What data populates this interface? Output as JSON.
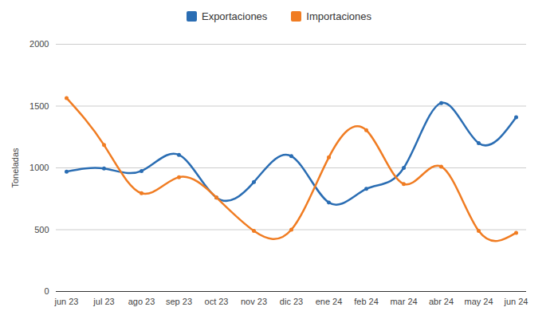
{
  "chart_data": {
    "type": "line",
    "categories": [
      "jun 23",
      "jul 23",
      "ago 23",
      "sep 23",
      "oct 23",
      "nov 23",
      "dic 23",
      "ene 24",
      "feb 24",
      "mar 24",
      "abr 24",
      "may 24",
      "jun 24"
    ],
    "series": [
      {
        "name": "Exportaciones",
        "color": "#2a6db3",
        "values": [
          970,
          995,
          975,
          1105,
          760,
          885,
          1095,
          720,
          830,
          1000,
          1525,
          1200,
          1410
        ]
      },
      {
        "name": "Importaciones",
        "color": "#f07c22",
        "values": [
          1565,
          1185,
          795,
          925,
          760,
          490,
          500,
          1085,
          1305,
          870,
          1010,
          490,
          475
        ]
      }
    ],
    "y_label": "Toneladas",
    "ylim": [
      0,
      2000
    ],
    "yticks": [
      0,
      500,
      1000,
      1500,
      2000
    ],
    "grid": true,
    "legend": "top",
    "marker": "circle"
  }
}
